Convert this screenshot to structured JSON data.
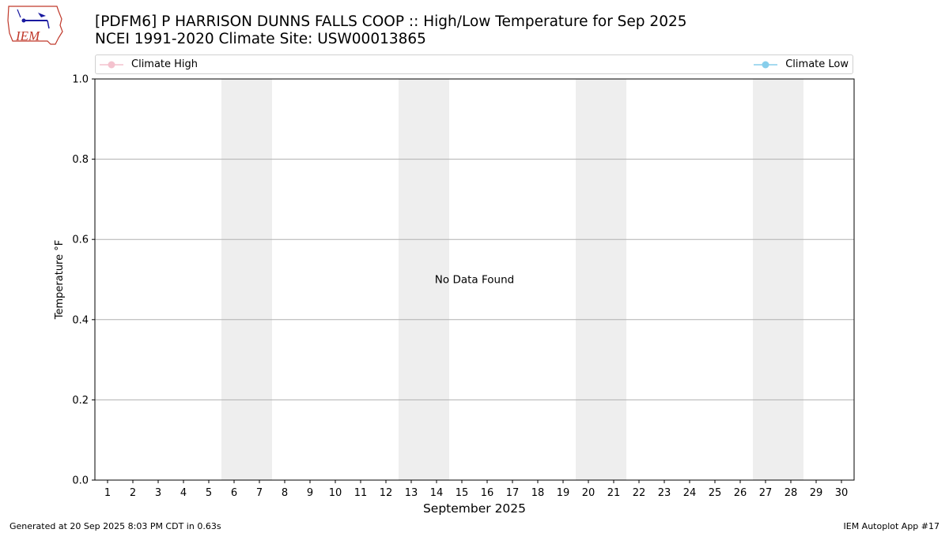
{
  "header": {
    "title_line1": "[PDFM6] P HARRISON DUNNS FALLS COOP :: High/Low Temperature for Sep 2025",
    "title_line2": "NCEI 1991-2020 Climate Site: USW00013865"
  },
  "logo": {
    "text": "IEM"
  },
  "legend": {
    "high_label": "Climate High",
    "low_label": "Climate Low",
    "high_color": "#f4c2ce",
    "low_color": "#87ceeb"
  },
  "footer": {
    "generated": "Generated at 20 Sep 2025 8:03 PM CDT in 0.63s",
    "app": "IEM Autoplot App #17"
  },
  "chart_data": {
    "type": "line",
    "title": "[PDFM6] P HARRISON DUNNS FALLS COOP :: High/Low Temperature for Sep 2025",
    "subtitle": "NCEI 1991-2020 Climate Site: USW00013865",
    "xlabel": "September 2025",
    "ylabel": "Temperature °F",
    "xlim": [
      0.5,
      30.5
    ],
    "ylim": [
      0.0,
      1.0
    ],
    "x_ticks": [
      1,
      2,
      3,
      4,
      5,
      6,
      7,
      8,
      9,
      10,
      11,
      12,
      13,
      14,
      15,
      16,
      17,
      18,
      19,
      20,
      21,
      22,
      23,
      24,
      25,
      26,
      27,
      28,
      29,
      30
    ],
    "y_ticks": [
      "0.0",
      "0.2",
      "0.4",
      "0.6",
      "0.8",
      "1.0"
    ],
    "y_tick_values": [
      0.0,
      0.2,
      0.4,
      0.6,
      0.8,
      1.0
    ],
    "weekend_bands": [
      [
        6,
        7
      ],
      [
        13,
        14
      ],
      [
        20,
        21
      ],
      [
        27,
        28
      ]
    ],
    "band_color": "#eeeeee",
    "grid": "horizontal",
    "legend_position": "top",
    "series": [
      {
        "name": "Climate High",
        "values": []
      },
      {
        "name": "Climate Low",
        "values": []
      }
    ],
    "annotation": "No Data Found"
  }
}
